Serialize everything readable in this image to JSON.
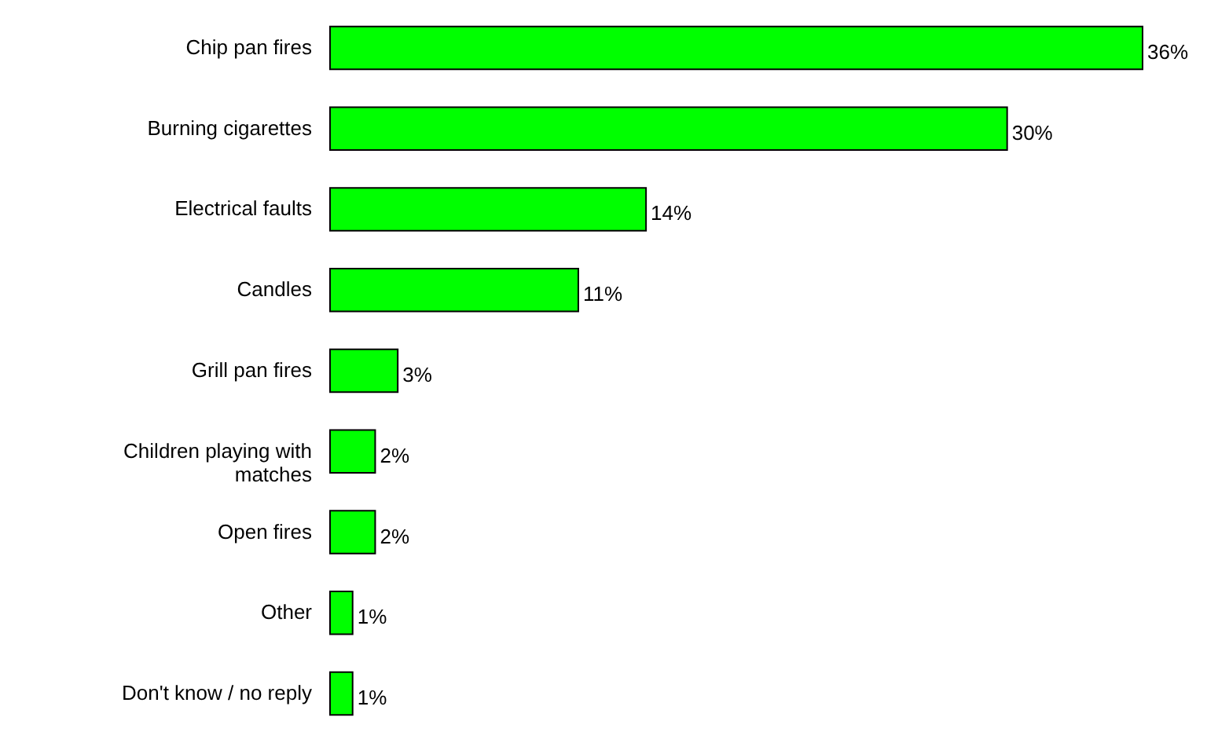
{
  "chart_data": {
    "type": "bar",
    "orientation": "horizontal",
    "categories": [
      "Chip pan fires",
      "Burning cigarettes",
      "Electrical faults",
      "Candles",
      "Grill pan fires",
      "Children playing with matches",
      "Open fires",
      "Other",
      "Don't know / no reply"
    ],
    "values": [
      36,
      30,
      14,
      11,
      3,
      2,
      2,
      1,
      1
    ],
    "value_labels": [
      "36%",
      "30%",
      "14%",
      "11%",
      "3%",
      "2%",
      "2%",
      "1%",
      "1%"
    ],
    "color": "#00ff00"
  }
}
